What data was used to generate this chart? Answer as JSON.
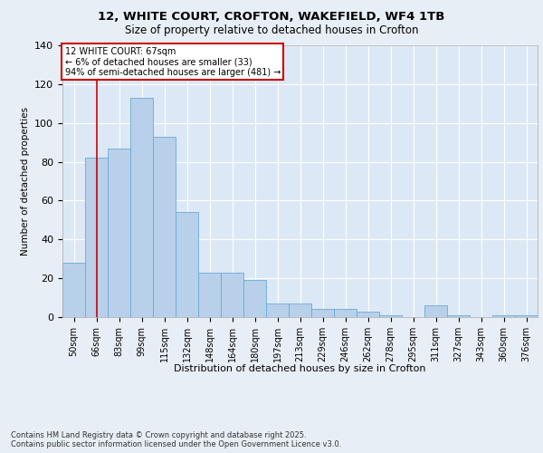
{
  "title_line1": "12, WHITE COURT, CROFTON, WAKEFIELD, WF4 1TB",
  "title_line2": "Size of property relative to detached houses in Crofton",
  "xlabel": "Distribution of detached houses by size in Crofton",
  "ylabel": "Number of detached properties",
  "footer": "Contains HM Land Registry data © Crown copyright and database right 2025.\nContains public sector information licensed under the Open Government Licence v3.0.",
  "categories": [
    "50sqm",
    "66sqm",
    "83sqm",
    "99sqm",
    "115sqm",
    "132sqm",
    "148sqm",
    "164sqm",
    "180sqm",
    "197sqm",
    "213sqm",
    "229sqm",
    "246sqm",
    "262sqm",
    "278sqm",
    "295sqm",
    "311sqm",
    "327sqm",
    "343sqm",
    "360sqm",
    "376sqm"
  ],
  "values": [
    28,
    82,
    87,
    113,
    93,
    54,
    23,
    23,
    19,
    7,
    7,
    4,
    4,
    3,
    1,
    0,
    6,
    1,
    0,
    1,
    1
  ],
  "bar_color": "#b8d0ea",
  "bar_edge_color": "#6aaad4",
  "property_line_x": 1,
  "annotation_title": "12 WHITE COURT: 67sqm",
  "annotation_line2": "← 6% of detached houses are smaller (33)",
  "annotation_line3": "94% of semi-detached houses are larger (481) →",
  "annotation_box_color": "#ffffff",
  "annotation_box_edge": "#cc0000",
  "vline_color": "#cc0000",
  "ylim": [
    0,
    140
  ],
  "fig_bg_color": "#e8eef5",
  "plot_bg_color": "#dce8f5"
}
